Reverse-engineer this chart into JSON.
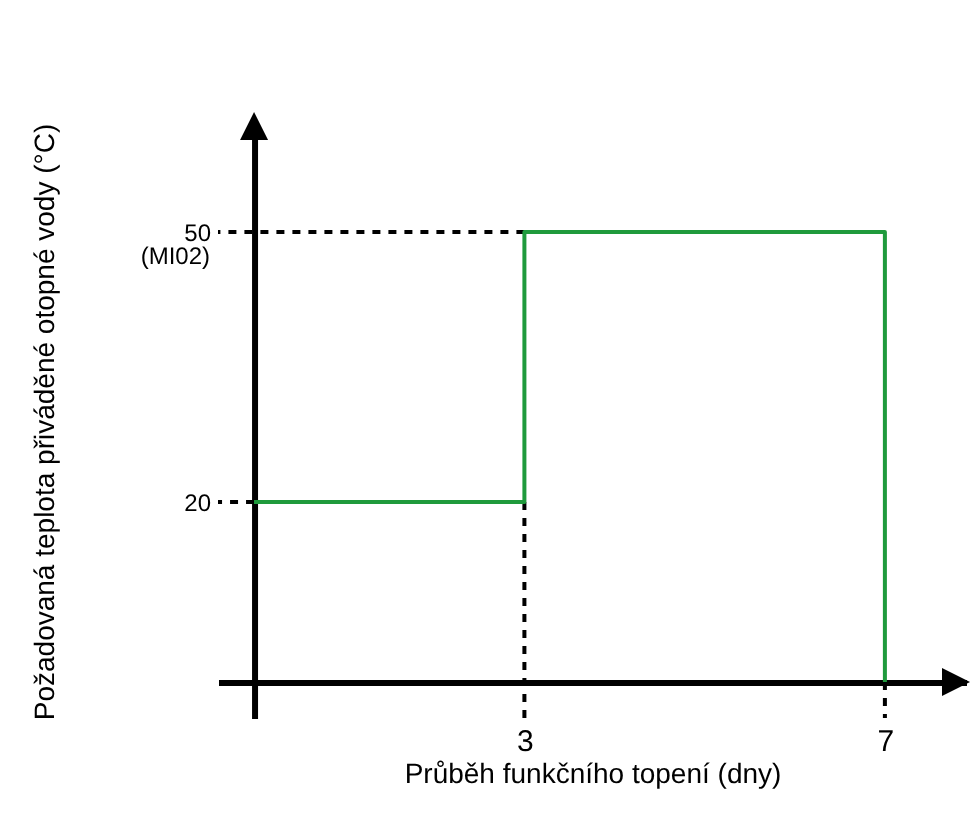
{
  "chart_data": {
    "type": "line",
    "xlabel": "Průběh funkčního topení (dny)",
    "ylabel": "Požadovaná teplota přiváděné otopné vody (°C)",
    "x": [
      0,
      3,
      3,
      7,
      7
    ],
    "series": [
      {
        "color": "#000000",
        "x": [
          3,
          -0.4
        ],
        "values": [
          50,
          50
        ],
        "line_style": "dashed"
      },
      {
        "color": "#000000",
        "x": [
          0,
          -0.4
        ],
        "values": [
          20,
          20
        ],
        "line_style": "dashed"
      },
      {
        "color": "#000000",
        "x": [
          3,
          3
        ],
        "values": [
          20,
          -4
        ],
        "line_style": "dashed"
      },
      {
        "color": "#000000",
        "x": [
          7,
          7
        ],
        "values": [
          0,
          -4
        ],
        "line_style": "dashed"
      },
      {
        "color": "#1f9a3c",
        "values": [
          20,
          20,
          50,
          50,
          0
        ],
        "line_style": "solid"
      }
    ],
    "xlim": [
      -0.4,
      7.9
    ],
    "ylim": [
      -4,
      62
    ],
    "xticks": [
      3,
      7
    ],
    "yticks": [
      20,
      50
    ],
    "annotations": [
      "(MI02)"
    ]
  }
}
